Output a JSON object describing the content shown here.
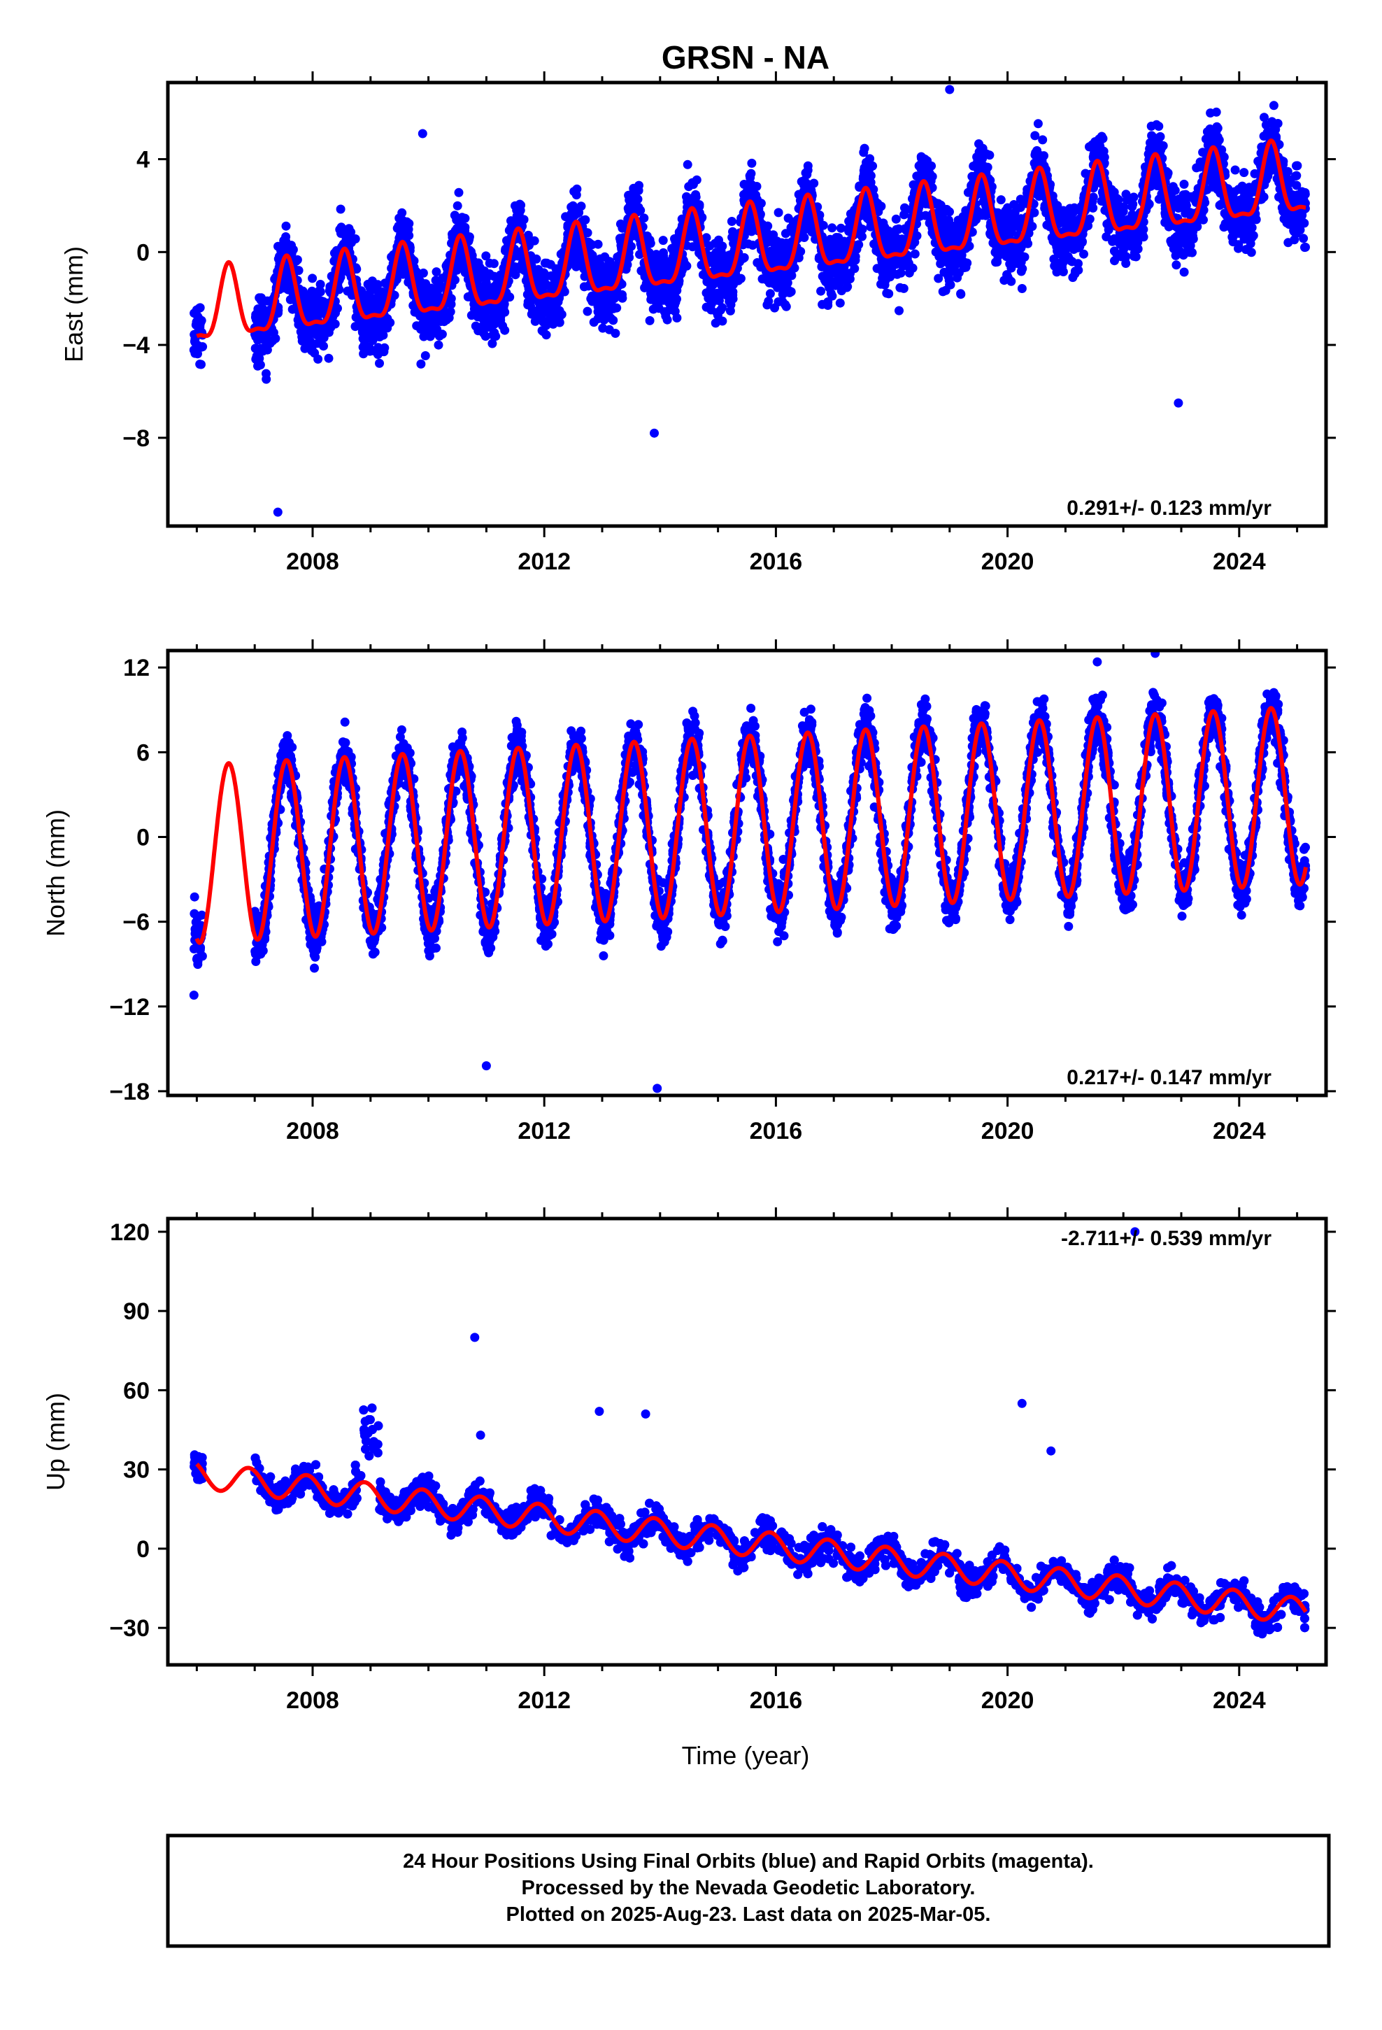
{
  "title": "GRSN - NA",
  "xlabel": "Time (year)",
  "caption": [
    "24 Hour Positions Using Final Orbits (blue) and Rapid Orbits (magenta).",
    "Processed by the Nevada Geodetic Laboratory.",
    "Plotted on 2025-Aug-23. Last data on 2025-Mar-05."
  ],
  "colors": {
    "final_orbits": "#0000ff",
    "model_fit": "#ff0000",
    "frame": "#000000"
  },
  "chart_data": [
    {
      "type": "scatter",
      "ylabel": "East (mm)",
      "rate_text": "0.291+/- 0.123 mm/yr",
      "xlim": [
        2005.5,
        2025.5
      ],
      "ylim": [
        -11.8,
        7.3
      ],
      "yticks": [
        -8,
        -4,
        0,
        4
      ],
      "ytick_labels": [
        "−8",
        "−4",
        "0",
        "4"
      ],
      "xticks": [
        2008,
        2012,
        2016,
        2020,
        2024
      ],
      "xtick_labels": [
        "2008",
        "2012",
        "2016",
        "2020",
        "2024"
      ],
      "model": {
        "start": 2006.0,
        "end": 2025.15,
        "offset": -2.6,
        "rate": 0.291,
        "amplitude": 1.5,
        "peak_phase": 0.55,
        "semiannual_amplitude": 0.5
      },
      "scatter": {
        "noise": 1.3,
        "density_per_year": 260,
        "outliers": [
          [
            2009.9,
            5.1
          ],
          [
            2013.9,
            -7.8
          ],
          [
            2007.4,
            -11.2
          ],
          [
            2022.95,
            -6.5
          ],
          [
            2019.0,
            7.0
          ]
        ]
      },
      "series": [
        {
          "name": "Final Orbits (blue)",
          "marker": "dot"
        },
        {
          "name": "Model fit",
          "marker": "line"
        }
      ]
    },
    {
      "type": "scatter",
      "ylabel": "North (mm)",
      "rate_text": "0.217+/- 0.147 mm/yr",
      "xlim": [
        2005.5,
        2025.5
      ],
      "ylim": [
        -18.3,
        13.2
      ],
      "yticks": [
        -18,
        -12,
        -6,
        0,
        6,
        12
      ],
      "ytick_labels": [
        "−18",
        "−12",
        "−6",
        "0",
        "6",
        "12"
      ],
      "xticks": [
        2008,
        2012,
        2016,
        2020,
        2024
      ],
      "xtick_labels": [
        "2008",
        "2012",
        "2016",
        "2020",
        "2024"
      ],
      "model": {
        "start": 2006.0,
        "end": 2025.15,
        "offset": -1.2,
        "rate": 0.217,
        "amplitude": 6.3,
        "peak_phase": 0.55,
        "semiannual_amplitude": 0.0
      },
      "scatter": {
        "noise": 1.6,
        "density_per_year": 260,
        "outliers": [
          [
            2013.95,
            -17.8
          ],
          [
            2011.0,
            -16.2
          ],
          [
            2022.55,
            13.0
          ],
          [
            2021.55,
            12.4
          ],
          [
            2005.95,
            -11.2
          ]
        ]
      },
      "series": [
        {
          "name": "Final Orbits (blue)",
          "marker": "dot"
        },
        {
          "name": "Model fit",
          "marker": "line"
        }
      ]
    },
    {
      "type": "scatter",
      "ylabel": "Up (mm)",
      "rate_text": "-2.711+/- 0.539 mm/yr",
      "xlim": [
        2005.5,
        2025.5
      ],
      "ylim": [
        -44,
        125
      ],
      "yticks": [
        -30,
        0,
        30,
        60,
        90,
        120
      ],
      "ytick_labels": [
        "−30",
        "0",
        "30",
        "60",
        "90",
        "120"
      ],
      "xticks": [
        2008,
        2012,
        2016,
        2020,
        2024
      ],
      "xtick_labels": [
        "2008",
        "2012",
        "2016",
        "2020",
        "2024"
      ],
      "model": {
        "start": 2006.0,
        "end": 2025.15,
        "offset": 28,
        "rate": -2.711,
        "amplitude": 5.0,
        "peak_phase": 0.9,
        "semiannual_amplitude": 0.0
      },
      "scatter": {
        "noise": 5.0,
        "density_per_year": 260,
        "outliers": [
          [
            2010.8,
            80
          ],
          [
            2012.95,
            52
          ],
          [
            2013.75,
            51
          ],
          [
            2020.25,
            55
          ],
          [
            2020.75,
            37
          ],
          [
            2022.2,
            120
          ],
          [
            2010.9,
            43
          ]
        ]
      },
      "series": [
        {
          "name": "Final Orbits (blue)",
          "marker": "dot"
        },
        {
          "name": "Model fit",
          "marker": "line"
        }
      ]
    }
  ]
}
